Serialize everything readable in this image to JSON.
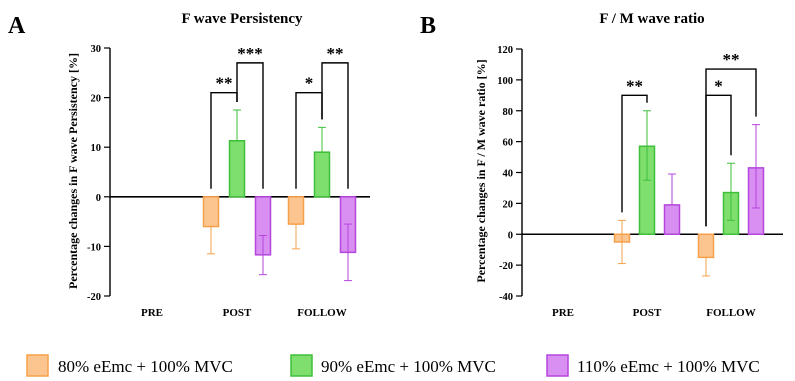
{
  "legend": [
    {
      "label": "80% eEmc + 100% MVC",
      "fill": "#fcc58f",
      "stroke": "#f5a04b"
    },
    {
      "label": "90% eEmc + 100% MVC",
      "fill": "#7ede6e",
      "stroke": "#3fbf3a"
    },
    {
      "label": "110% eEmc + 100% MVC",
      "fill": "#d98ff2",
      "stroke": "#b446dc"
    }
  ],
  "chart_data": [
    {
      "type": "bar",
      "panel": "A",
      "title": "F wave Persistency",
      "ylabel": "Percentage changes in F wave Persistency [%]",
      "categories": [
        "PRE",
        "POST",
        "FOLLOW"
      ],
      "ylim": [
        -20,
        30
      ],
      "yticks": [
        -20,
        -10,
        0,
        10,
        20,
        30
      ],
      "series": [
        {
          "name": "80% eEmc + 100% MVC",
          "values": [
            null,
            -6,
            -5.5
          ],
          "err_low": [
            null,
            -11.5,
            -10.5
          ],
          "err_high": [
            null,
            -6,
            -5.5
          ]
        },
        {
          "name": "90% eEmc + 100% MVC",
          "values": [
            null,
            11.3,
            9
          ],
          "err_low": [
            null,
            11.3,
            9
          ],
          "err_high": [
            null,
            17.5,
            14
          ]
        },
        {
          "name": "110% eEmc + 100% MVC",
          "values": [
            null,
            -11.7,
            -11.2
          ],
          "err_low": [
            null,
            -15.7,
            -16.9
          ],
          "err_high": [
            null,
            -7.8,
            -5.5
          ]
        }
      ],
      "significance": [
        {
          "category": "POST",
          "from": 0,
          "to": 1,
          "label": "**",
          "level": 21
        },
        {
          "category": "POST",
          "from": 1,
          "to": 2,
          "label": "***",
          "level": 27
        },
        {
          "category": "FOLLOW",
          "from": 0,
          "to": 1,
          "label": "*",
          "level": 21
        },
        {
          "category": "FOLLOW",
          "from": 1,
          "to": 2,
          "label": "**",
          "level": 27
        }
      ]
    },
    {
      "type": "bar",
      "panel": "B",
      "title": "F / M wave ratio",
      "ylabel": "Percentage changes in F / M wave ratio [%]",
      "categories": [
        "PRE",
        "POST",
        "FOLLOW"
      ],
      "ylim": [
        -40,
        120
      ],
      "yticks": [
        -40,
        -20,
        0,
        20,
        40,
        60,
        80,
        100,
        120
      ],
      "series": [
        {
          "name": "80% eEmc + 100% MVC",
          "values": [
            null,
            -5,
            -15
          ],
          "err_low": [
            null,
            -19,
            -27
          ],
          "err_high": [
            null,
            9,
            -15
          ]
        },
        {
          "name": "90% eEmc + 100% MVC",
          "values": [
            null,
            57,
            27
          ],
          "err_low": [
            null,
            35,
            9
          ],
          "err_high": [
            null,
            80,
            46
          ]
        },
        {
          "name": "110% eEmc + 100% MVC",
          "values": [
            null,
            19,
            43
          ],
          "err_low": [
            null,
            19,
            17
          ],
          "err_high": [
            null,
            39,
            71
          ]
        }
      ],
      "significance": [
        {
          "category": "POST",
          "from": 0,
          "to": 1,
          "label": "**",
          "level": 90
        },
        {
          "category": "FOLLOW",
          "from": 0,
          "to": 1,
          "label": "*",
          "level": 90
        },
        {
          "category": "FOLLOW",
          "from": 0,
          "to": 2,
          "label": "**",
          "level": 107
        }
      ]
    }
  ]
}
